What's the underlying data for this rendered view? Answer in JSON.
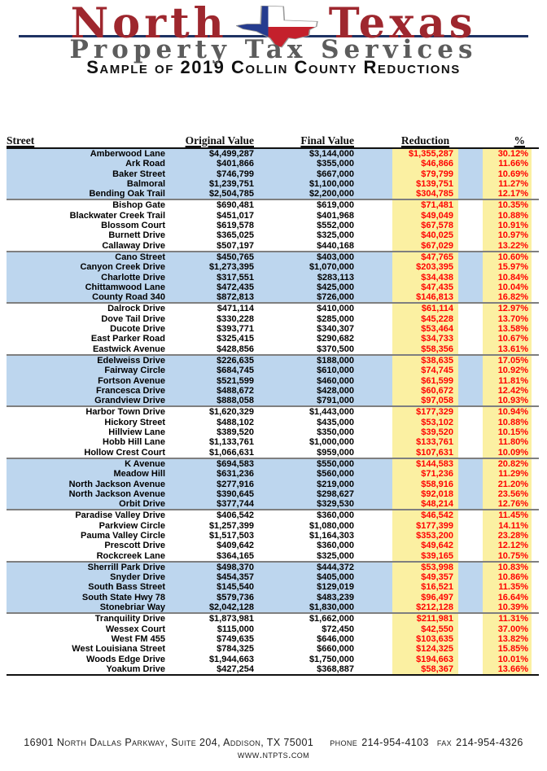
{
  "logo": {
    "word1": "North",
    "word2": "Texas",
    "subtitle": "Property Tax Services",
    "flag_icon": "texas-flag-icon"
  },
  "title": "Sample of 2019 Collin County Reductions",
  "colors": {
    "brand_red": "#9E272E",
    "navy_rule": "#1E3263",
    "subtitle_gray": "#5C5C5C",
    "row_blue": "#BDD6EE",
    "cell_yellow": "#FBF0A2",
    "value_red": "#FF0000",
    "separator_gray": "#7F7F7F"
  },
  "table": {
    "headers": {
      "street": "Street",
      "original": "Original Value",
      "final": "Final Value",
      "reduction": "Reduction",
      "percent": "%"
    },
    "groups": [
      {
        "shaded": true,
        "rows": [
          {
            "street": "Amberwood Lane",
            "original": "$4,499,287",
            "final": "$3,144,000",
            "reduction": "$1,355,287",
            "percent": "30.12%"
          },
          {
            "street": "Ark Road",
            "original": "$401,866",
            "final": "$355,000",
            "reduction": "$46,866",
            "percent": "11.66%"
          },
          {
            "street": "Baker Street",
            "original": "$746,799",
            "final": "$667,000",
            "reduction": "$79,799",
            "percent": "10.69%"
          },
          {
            "street": "Balmoral",
            "original": "$1,239,751",
            "final": "$1,100,000",
            "reduction": "$139,751",
            "percent": "11.27%"
          },
          {
            "street": "Bending Oak Trail",
            "original": "$2,504,785",
            "final": "$2,200,000",
            "reduction": "$304,785",
            "percent": "12.17%"
          }
        ]
      },
      {
        "shaded": false,
        "rows": [
          {
            "street": "Bishop Gate",
            "original": "$690,481",
            "final": "$619,000",
            "reduction": "$71,481",
            "percent": "10.35%"
          },
          {
            "street": "Blackwater Creek Trail",
            "original": "$451,017",
            "final": "$401,968",
            "reduction": "$49,049",
            "percent": "10.88%"
          },
          {
            "street": "Blossom Court",
            "original": "$619,578",
            "final": "$552,000",
            "reduction": "$67,578",
            "percent": "10.91%"
          },
          {
            "street": "Burnett Drive",
            "original": "$365,025",
            "final": "$325,000",
            "reduction": "$40,025",
            "percent": "10.97%"
          },
          {
            "street": "Callaway Drive",
            "original": "$507,197",
            "final": "$440,168",
            "reduction": "$67,029",
            "percent": "13.22%"
          }
        ]
      },
      {
        "shaded": true,
        "rows": [
          {
            "street": "Cano Street",
            "original": "$450,765",
            "final": "$403,000",
            "reduction": "$47,765",
            "percent": "10.60%"
          },
          {
            "street": "Canyon Creek Drive",
            "original": "$1,273,395",
            "final": "$1,070,000",
            "reduction": "$203,395",
            "percent": "15.97%"
          },
          {
            "street": "Charlotte Drive",
            "original": "$317,551",
            "final": "$283,113",
            "reduction": "$34,438",
            "percent": "10.84%"
          },
          {
            "street": "Chittamwood Lane",
            "original": "$472,435",
            "final": "$425,000",
            "reduction": "$47,435",
            "percent": "10.04%"
          },
          {
            "street": "County Road 340",
            "original": "$872,813",
            "final": "$726,000",
            "reduction": "$146,813",
            "percent": "16.82%"
          }
        ]
      },
      {
        "shaded": false,
        "rows": [
          {
            "street": "Dalrock Drive",
            "original": "$471,114",
            "final": "$410,000",
            "reduction": "$61,114",
            "percent": "12.97%"
          },
          {
            "street": "Dove Tail Drive",
            "original": "$330,228",
            "final": "$285,000",
            "reduction": "$45,228",
            "percent": "13.70%"
          },
          {
            "street": "Ducote Drive",
            "original": "$393,771",
            "final": "$340,307",
            "reduction": "$53,464",
            "percent": "13.58%"
          },
          {
            "street": "East Parker Road",
            "original": "$325,415",
            "final": "$290,682",
            "reduction": "$34,733",
            "percent": "10.67%"
          },
          {
            "street": "Eastwick Avenue",
            "original": "$428,856",
            "final": "$370,500",
            "reduction": "$58,356",
            "percent": "13.61%"
          }
        ]
      },
      {
        "shaded": true,
        "rows": [
          {
            "street": "Edelweiss Drive",
            "original": "$226,635",
            "final": "$188,000",
            "reduction": "$38,635",
            "percent": "17.05%"
          },
          {
            "street": "Fairway Circle",
            "original": "$684,745",
            "final": "$610,000",
            "reduction": "$74,745",
            "percent": "10.92%"
          },
          {
            "street": "Fortson Avenue",
            "original": "$521,599",
            "final": "$460,000",
            "reduction": "$61,599",
            "percent": "11.81%"
          },
          {
            "street": "Francesca Drive",
            "original": "$488,672",
            "final": "$428,000",
            "reduction": "$60,672",
            "percent": "12.42%"
          },
          {
            "street": "Grandview Drive",
            "original": "$888,058",
            "final": "$791,000",
            "reduction": "$97,058",
            "percent": "10.93%"
          }
        ]
      },
      {
        "shaded": false,
        "rows": [
          {
            "street": "Harbor Town Drive",
            "original": "$1,620,329",
            "final": "$1,443,000",
            "reduction": "$177,329",
            "percent": "10.94%"
          },
          {
            "street": "Hickory Street",
            "original": "$488,102",
            "final": "$435,000",
            "reduction": "$53,102",
            "percent": "10.88%"
          },
          {
            "street": "Hillview Lane",
            "original": "$389,520",
            "final": "$350,000",
            "reduction": "$39,520",
            "percent": "10.15%"
          },
          {
            "street": "Hobb Hill Lane",
            "original": "$1,133,761",
            "final": "$1,000,000",
            "reduction": "$133,761",
            "percent": "11.80%"
          },
          {
            "street": "Hollow Crest Court",
            "original": "$1,066,631",
            "final": "$959,000",
            "reduction": "$107,631",
            "percent": "10.09%"
          }
        ]
      },
      {
        "shaded": true,
        "rows": [
          {
            "street": "K Avenue",
            "original": "$694,583",
            "final": "$550,000",
            "reduction": "$144,583",
            "percent": "20.82%"
          },
          {
            "street": "Meadow Hill",
            "original": "$631,236",
            "final": "$560,000",
            "reduction": "$71,236",
            "percent": "11.29%"
          },
          {
            "street": "North Jackson Avenue",
            "original": "$277,916",
            "final": "$219,000",
            "reduction": "$58,916",
            "percent": "21.20%"
          },
          {
            "street": "North Jackson Avenue",
            "original": "$390,645",
            "final": "$298,627",
            "reduction": "$92,018",
            "percent": "23.56%"
          },
          {
            "street": "Orbit Drive",
            "original": "$377,744",
            "final": "$329,530",
            "reduction": "$48,214",
            "percent": "12.76%"
          }
        ]
      },
      {
        "shaded": false,
        "rows": [
          {
            "street": "Paradise Valley Drive",
            "original": "$406,542",
            "final": "$360,000",
            "reduction": "$46,542",
            "percent": "11.45%"
          },
          {
            "street": "Parkview Circle",
            "original": "$1,257,399",
            "final": "$1,080,000",
            "reduction": "$177,399",
            "percent": "14.11%"
          },
          {
            "street": "Pauma Valley Circle",
            "original": "$1,517,503",
            "final": "$1,164,303",
            "reduction": "$353,200",
            "percent": "23.28%"
          },
          {
            "street": "Prescott Drive",
            "original": "$409,642",
            "final": "$360,000",
            "reduction": "$49,642",
            "percent": "12.12%"
          },
          {
            "street": "Rockcreek Lane",
            "original": "$364,165",
            "final": "$325,000",
            "reduction": "$39,165",
            "percent": "10.75%"
          }
        ]
      },
      {
        "shaded": true,
        "rows": [
          {
            "street": "Sherrill Park Drive",
            "original": "$498,370",
            "final": "$444,372",
            "reduction": "$53,998",
            "percent": "10.83%"
          },
          {
            "street": "Snyder Drive",
            "original": "$454,357",
            "final": "$405,000",
            "reduction": "$49,357",
            "percent": "10.86%"
          },
          {
            "street": "South Bass Street",
            "original": "$145,540",
            "final": "$129,019",
            "reduction": "$16,521",
            "percent": "11.35%"
          },
          {
            "street": "South State Hwy 78",
            "original": "$579,736",
            "final": "$483,239",
            "reduction": "$96,497",
            "percent": "16.64%"
          },
          {
            "street": "Stonebriar Way",
            "original": "$2,042,128",
            "final": "$1,830,000",
            "reduction": "$212,128",
            "percent": "10.39%"
          }
        ]
      },
      {
        "shaded": false,
        "rows": [
          {
            "street": "Tranquility Drive",
            "original": "$1,873,981",
            "final": "$1,662,000",
            "reduction": "$211,981",
            "percent": "11.31%"
          },
          {
            "street": "Wessex Court",
            "original": "$115,000",
            "final": "$72,450",
            "reduction": "$42,550",
            "percent": "37.00%"
          },
          {
            "street": "West FM 455",
            "original": "$749,635",
            "final": "$646,000",
            "reduction": "$103,635",
            "percent": "13.82%"
          },
          {
            "street": "West Louisiana Street",
            "original": "$784,325",
            "final": "$660,000",
            "reduction": "$124,325",
            "percent": "15.85%"
          },
          {
            "street": "Woods Edge Drive",
            "original": "$1,944,663",
            "final": "$1,750,000",
            "reduction": "$194,663",
            "percent": "10.01%"
          },
          {
            "street": "Yoakum Drive",
            "original": "$427,254",
            "final": "$368,887",
            "reduction": "$58,367",
            "percent": "13.66%"
          }
        ]
      }
    ]
  },
  "footer": {
    "address": "16901 North Dallas Parkway, Suite 204, Addison, TX 75001",
    "phone_label": "phone",
    "phone": "214-954-4103",
    "fax_label": "fax",
    "fax": "214-954-4326",
    "website": "www.ntpts.com"
  }
}
